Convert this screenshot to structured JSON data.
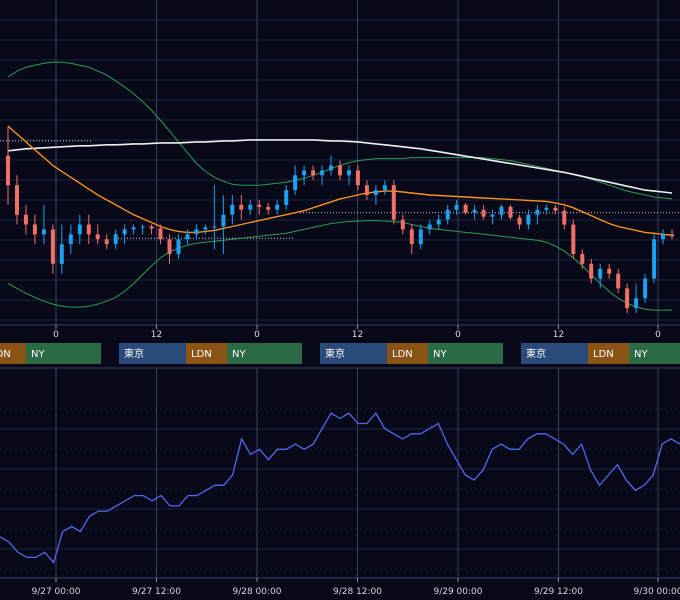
{
  "colors": {
    "background": "#070818",
    "grid": "#1e2240",
    "vgrid": "#3a3f5c",
    "up": "#1ea0f0",
    "down": "#f07068",
    "ma_short": "#f7931e",
    "ma_long": "#f0f0f0",
    "bollinger": "#2e9a57",
    "oscillator": "#5567f0",
    "session_tokyo": "#2a4a7a",
    "session_london": "#8a5416",
    "session_ny": "#2a6a44"
  },
  "sessions": {
    "tokyo": "東京",
    "london": "LDN",
    "ny": "NY"
  },
  "chart_data": [
    {
      "type": "candlestick",
      "x_tick_labels": [
        "0",
        "12",
        "0",
        "12",
        "0",
        "12",
        "0"
      ],
      "y_tick_labels": [],
      "overlays": [
        "moving-average-short",
        "moving-average-long",
        "bollinger-upper",
        "bollinger-lower"
      ],
      "candles": [
        {
          "o": 16,
          "h": 19,
          "l": 11,
          "c": 13
        },
        {
          "o": 13,
          "h": 14,
          "l": 9,
          "c": 10
        },
        {
          "o": 10,
          "h": 11,
          "l": 8,
          "c": 9
        },
        {
          "o": 9,
          "h": 10,
          "l": 7,
          "c": 8
        },
        {
          "o": 8,
          "h": 11,
          "l": 7,
          "c": 8.5
        },
        {
          "o": 8.5,
          "h": 9,
          "l": 4,
          "c": 5
        },
        {
          "o": 5,
          "h": 9,
          "l": 4,
          "c": 7
        },
        {
          "o": 7,
          "h": 9,
          "l": 6,
          "c": 8
        },
        {
          "o": 8,
          "h": 10,
          "l": 7,
          "c": 9
        },
        {
          "o": 9,
          "h": 10,
          "l": 7,
          "c": 8
        },
        {
          "o": 8,
          "h": 9,
          "l": 7,
          "c": 7.5
        },
        {
          "o": 7.5,
          "h": 8,
          "l": 6.5,
          "c": 7
        },
        {
          "o": 7,
          "h": 8.5,
          "l": 6.5,
          "c": 8
        },
        {
          "o": 8,
          "h": 9,
          "l": 7,
          "c": 8.5
        },
        {
          "o": 8.5,
          "h": 9,
          "l": 8,
          "c": 8.7
        },
        {
          "o": 8.7,
          "h": 9,
          "l": 8,
          "c": 8.8
        },
        {
          "o": 8.8,
          "h": 9,
          "l": 8,
          "c": 8.6
        },
        {
          "o": 8.6,
          "h": 9,
          "l": 7,
          "c": 7.5
        },
        {
          "o": 7.5,
          "h": 8,
          "l": 5,
          "c": 6
        },
        {
          "o": 6,
          "h": 8,
          "l": 5.5,
          "c": 7.5
        },
        {
          "o": 7.5,
          "h": 8.5,
          "l": 7,
          "c": 8
        },
        {
          "o": 8,
          "h": 9,
          "l": 7.5,
          "c": 8.5
        },
        {
          "o": 8.5,
          "h": 9,
          "l": 8,
          "c": 8.7
        },
        {
          "o": 8.7,
          "h": 13,
          "l": 6.5,
          "c": 8.8
        },
        {
          "o": 8.8,
          "h": 12,
          "l": 6,
          "c": 10
        },
        {
          "o": 10,
          "h": 12,
          "l": 9,
          "c": 11
        },
        {
          "o": 11,
          "h": 12,
          "l": 9.5,
          "c": 10.5
        },
        {
          "o": 10.5,
          "h": 11.5,
          "l": 10,
          "c": 11
        },
        {
          "o": 11,
          "h": 11.5,
          "l": 10,
          "c": 10.8
        },
        {
          "o": 10.8,
          "h": 11.2,
          "l": 10,
          "c": 10.5
        },
        {
          "o": 10.5,
          "h": 11.5,
          "l": 10,
          "c": 11
        },
        {
          "o": 11,
          "h": 13,
          "l": 10.5,
          "c": 12.5
        },
        {
          "o": 12.5,
          "h": 15,
          "l": 12,
          "c": 14
        },
        {
          "o": 14,
          "h": 15,
          "l": 13,
          "c": 14.5
        },
        {
          "o": 14.5,
          "h": 15,
          "l": 13.5,
          "c": 14
        },
        {
          "o": 14,
          "h": 15,
          "l": 13,
          "c": 14.5
        },
        {
          "o": 14.5,
          "h": 16,
          "l": 14,
          "c": 15
        },
        {
          "o": 15,
          "h": 15.5,
          "l": 13.5,
          "c": 14
        },
        {
          "o": 14,
          "h": 15,
          "l": 13,
          "c": 14.5
        },
        {
          "o": 14.5,
          "h": 15,
          "l": 12.5,
          "c": 13
        },
        {
          "o": 13,
          "h": 13.5,
          "l": 11.5,
          "c": 12
        },
        {
          "o": 12,
          "h": 13,
          "l": 11,
          "c": 12.5
        },
        {
          "o": 12.5,
          "h": 13.5,
          "l": 12,
          "c": 13
        },
        {
          "o": 13,
          "h": 13.5,
          "l": 9,
          "c": 9.5
        },
        {
          "o": 9.5,
          "h": 10,
          "l": 8,
          "c": 8.5
        },
        {
          "o": 8.5,
          "h": 9,
          "l": 6,
          "c": 7
        },
        {
          "o": 7,
          "h": 9,
          "l": 6.5,
          "c": 8.5
        },
        {
          "o": 8.5,
          "h": 9.5,
          "l": 8,
          "c": 9
        },
        {
          "o": 9,
          "h": 10,
          "l": 8.5,
          "c": 9.5
        },
        {
          "o": 9.5,
          "h": 11,
          "l": 9,
          "c": 10.5
        },
        {
          "o": 10.5,
          "h": 11.5,
          "l": 10,
          "c": 11
        },
        {
          "o": 11,
          "h": 11.2,
          "l": 10,
          "c": 10.2
        },
        {
          "o": 10.2,
          "h": 11,
          "l": 9.5,
          "c": 10.5
        },
        {
          "o": 10.5,
          "h": 11,
          "l": 9.5,
          "c": 9.8
        },
        {
          "o": 9.8,
          "h": 10.5,
          "l": 9,
          "c": 10
        },
        {
          "o": 10,
          "h": 11,
          "l": 9.5,
          "c": 10.8
        },
        {
          "o": 10.8,
          "h": 11,
          "l": 9.5,
          "c": 9.7
        },
        {
          "o": 9.7,
          "h": 10,
          "l": 8.5,
          "c": 9
        },
        {
          "o": 9,
          "h": 10.5,
          "l": 8.5,
          "c": 10
        },
        {
          "o": 10,
          "h": 11,
          "l": 9,
          "c": 10.5
        },
        {
          "o": 10.5,
          "h": 11,
          "l": 10,
          "c": 10.7
        },
        {
          "o": 10.7,
          "h": 11,
          "l": 10,
          "c": 10.4
        },
        {
          "o": 10.4,
          "h": 10.8,
          "l": 8.5,
          "c": 9
        },
        {
          "o": 9,
          "h": 9.5,
          "l": 5.5,
          "c": 6
        },
        {
          "o": 6,
          "h": 6.5,
          "l": 4.5,
          "c": 5
        },
        {
          "o": 5,
          "h": 5.5,
          "l": 3,
          "c": 3.5
        },
        {
          "o": 3.5,
          "h": 5,
          "l": 2.5,
          "c": 4.5
        },
        {
          "o": 4.5,
          "h": 5,
          "l": 3.5,
          "c": 4
        },
        {
          "o": 4,
          "h": 4.5,
          "l": 2,
          "c": 2.5
        },
        {
          "o": 2.5,
          "h": 3,
          "l": 0,
          "c": 0.5
        },
        {
          "o": 0.5,
          "h": 3,
          "l": 0,
          "c": 1.5
        },
        {
          "o": 1.5,
          "h": 4,
          "l": 1,
          "c": 3.5
        },
        {
          "o": 3.5,
          "h": 8,
          "l": 3,
          "c": 7.5
        },
        {
          "o": 7.5,
          "h": 8.5,
          "l": 7,
          "c": 8
        },
        {
          "o": 8,
          "h": 8.5,
          "l": 7.5,
          "c": 7.8
        }
      ],
      "ma_short": [
        19,
        18.2,
        17.4,
        16.6,
        15.8,
        15,
        14.4,
        13.8,
        13.2,
        12.6,
        12,
        11.5,
        11,
        10.5,
        10,
        9.6,
        9.2,
        8.8,
        8.5,
        8.3,
        8.2,
        8.2,
        8.3,
        8.4,
        8.6,
        8.8,
        9,
        9.2,
        9.4,
        9.6,
        9.8,
        10,
        10.2,
        10.4,
        10.7,
        11,
        11.3,
        11.6,
        11.8,
        12,
        12.2,
        12.3,
        12.4,
        12.4,
        12.3,
        12.2,
        12.1,
        12,
        11.95,
        11.9,
        11.85,
        11.8,
        11.75,
        11.7,
        11.65,
        11.6,
        11.55,
        11.5,
        11.45,
        11.4,
        11.35,
        11.2,
        11,
        10.7,
        10.3,
        9.9,
        9.5,
        9.1,
        8.8,
        8.6,
        8.4,
        8.2,
        8.1,
        8,
        7.9
      ],
      "ma_long": [
        16.5,
        16.6,
        16.7,
        16.75,
        16.8,
        16.85,
        16.9,
        16.95,
        17,
        17,
        17.05,
        17.1,
        17.1,
        17.15,
        17.2,
        17.2,
        17.25,
        17.3,
        17.3,
        17.3,
        17.35,
        17.4,
        17.4,
        17.45,
        17.5,
        17.5,
        17.55,
        17.6,
        17.6,
        17.6,
        17.6,
        17.6,
        17.6,
        17.6,
        17.6,
        17.55,
        17.5,
        17.5,
        17.45,
        17.4,
        17.3,
        17.2,
        17.1,
        17,
        16.9,
        16.8,
        16.7,
        16.55,
        16.4,
        16.25,
        16.1,
        15.95,
        15.8,
        15.65,
        15.5,
        15.35,
        15.2,
        15.05,
        14.9,
        14.75,
        14.6,
        14.45,
        14.3,
        14.1,
        13.9,
        13.7,
        13.5,
        13.3,
        13.1,
        12.9,
        12.7,
        12.5,
        12.4,
        12.3,
        12.2
      ],
      "bb_upper": [
        24,
        24.6,
        25,
        25.2,
        25.4,
        25.5,
        25.5,
        25.4,
        25.2,
        25,
        24.6,
        24.2,
        23.6,
        23,
        22.3,
        21.5,
        20.6,
        19.6,
        18.5,
        17.4,
        16.3,
        15.2,
        14.4,
        13.8,
        13.4,
        13.1,
        13,
        13,
        13,
        13.1,
        13.2,
        13.3,
        13.5,
        13.7,
        14,
        14.3,
        14.7,
        15,
        15.3,
        15.5,
        15.6,
        15.7,
        15.7,
        15.7,
        15.7,
        15.8,
        15.8,
        15.8,
        15.8,
        15.8,
        15.8,
        15.8,
        15.8,
        15.8,
        15.7,
        15.6,
        15.5,
        15.3,
        15.1,
        14.9,
        14.7,
        14.5,
        14.3,
        14.1,
        13.9,
        13.6,
        13.3,
        13,
        12.7,
        12.4,
        12.2,
        12,
        11.8,
        11.7,
        11.6
      ],
      "bb_lower": [
        3,
        2.5,
        2,
        1.6,
        1.2,
        0.9,
        0.7,
        0.6,
        0.6,
        0.7,
        0.9,
        1.2,
        1.6,
        2.2,
        3,
        3.9,
        4.8,
        5.6,
        6.2,
        6.6,
        6.9,
        7.1,
        7.2,
        7.3,
        7.4,
        7.5,
        7.6,
        7.7,
        7.8,
        7.9,
        8,
        8.1,
        8.3,
        8.5,
        8.7,
        8.9,
        9.1,
        9.2,
        9.3,
        9.35,
        9.4,
        9.4,
        9.35,
        9.3,
        9.2,
        9,
        8.8,
        8.6,
        8.5,
        8.4,
        8.3,
        8.2,
        8.1,
        8,
        7.9,
        7.8,
        7.7,
        7.6,
        7.5,
        7.4,
        7.2,
        6.8,
        6.3,
        5.6,
        4.8,
        3.9,
        3,
        2.2,
        1.5,
        1,
        0.6,
        0.4,
        0.3,
        0.3,
        0.3
      ],
      "dotted_levels": [
        17.5,
        7.6,
        10.2
      ]
    },
    {
      "type": "line",
      "x_tick_labels": [
        "9/27 00:00",
        "9/27 12:00",
        "9/28 00:00",
        "9/28 12:00",
        "9/29 00:00",
        "9/29 12:00",
        "9/30 00:00"
      ],
      "y_tick_labels": [],
      "series": [
        {
          "values": [
            28,
            27,
            25,
            24,
            24,
            25,
            23,
            29,
            30,
            29,
            32,
            33,
            33,
            34,
            35,
            36,
            36,
            35,
            36,
            34,
            34,
            36,
            36,
            37,
            38,
            38,
            40,
            47,
            44,
            45,
            43,
            45,
            45,
            46,
            45,
            46,
            49,
            52,
            51,
            52,
            50,
            50,
            52,
            49,
            48,
            47,
            48,
            48,
            49,
            50,
            46,
            43,
            40,
            39,
            41,
            45,
            46,
            45,
            45,
            47,
            48,
            48,
            47,
            46,
            44,
            46,
            41,
            38,
            40,
            42,
            39,
            37,
            38,
            40,
            46,
            47,
            46
          ]
        }
      ],
      "ylim": [
        20,
        60
      ]
    }
  ]
}
